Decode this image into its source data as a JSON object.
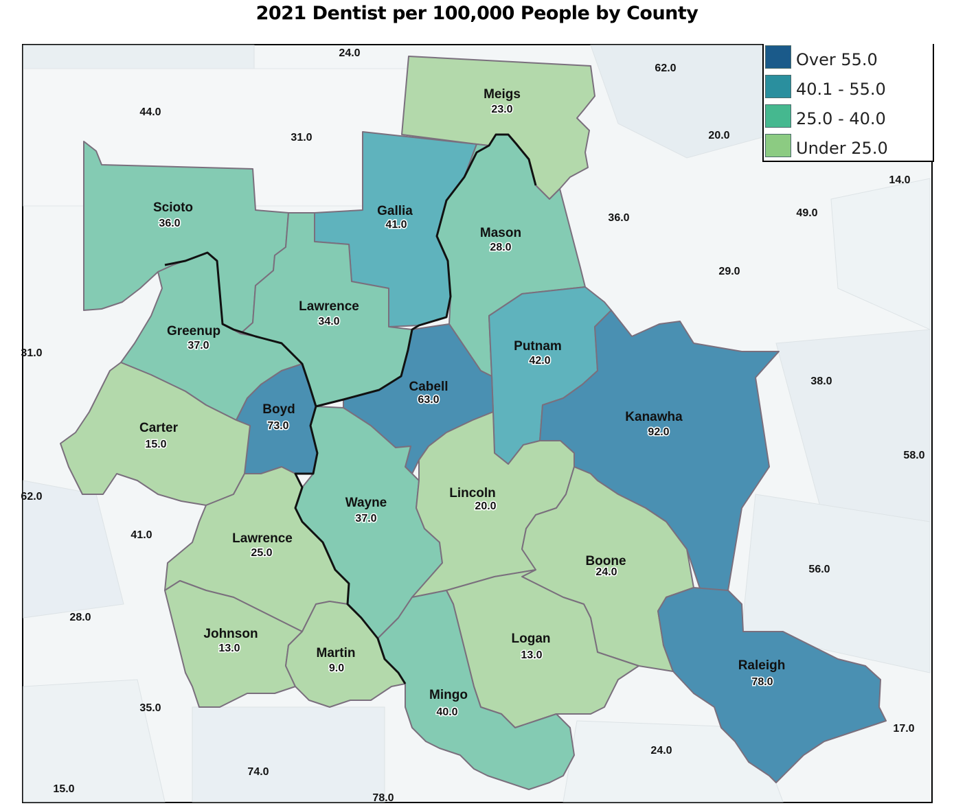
{
  "title": "2021 Dentist per 100,000 People by County",
  "legend": [
    {
      "label": "Over 55.0",
      "color": "#1a5a8a"
    },
    {
      "label": "40.1 - 55.0",
      "color": "#2a8f9e"
    },
    {
      "label": "25.0 - 40.0",
      "color": "#45b88f"
    },
    {
      "label": "Under 25.0",
      "color": "#8ccb82"
    }
  ],
  "counties": [
    {
      "id": "meigs",
      "name": "Meigs",
      "value": "23.0"
    },
    {
      "id": "scioto",
      "name": "Scioto",
      "value": "36.0"
    },
    {
      "id": "gallia",
      "name": "Gallia",
      "value": "41.0"
    },
    {
      "id": "mason",
      "name": "Mason",
      "value": "28.0"
    },
    {
      "id": "lawrence-oh",
      "name": "Lawrence",
      "value": "34.0"
    },
    {
      "id": "greenup",
      "name": "Greenup",
      "value": "37.0"
    },
    {
      "id": "putnam",
      "name": "Putnam",
      "value": "42.0"
    },
    {
      "id": "cabell",
      "name": "Cabell",
      "value": "63.0"
    },
    {
      "id": "boyd",
      "name": "Boyd",
      "value": "73.0"
    },
    {
      "id": "carter",
      "name": "Carter",
      "value": "15.0"
    },
    {
      "id": "kanawha",
      "name": "Kanawha",
      "value": "92.0"
    },
    {
      "id": "wayne",
      "name": "Wayne",
      "value": "37.0"
    },
    {
      "id": "lincoln",
      "name": "Lincoln",
      "value": "20.0"
    },
    {
      "id": "lawrence-ky",
      "name": "Lawrence",
      "value": "25.0"
    },
    {
      "id": "boone",
      "name": "Boone",
      "value": "24.0"
    },
    {
      "id": "johnson",
      "name": "Johnson",
      "value": "13.0"
    },
    {
      "id": "logan",
      "name": "Logan",
      "value": "13.0"
    },
    {
      "id": "martin",
      "name": "Martin",
      "value": "9.0"
    },
    {
      "id": "raleigh",
      "name": "Raleigh",
      "value": "78.0"
    },
    {
      "id": "mingo",
      "name": "Mingo",
      "value": "40.0"
    }
  ],
  "outside_values": [
    "24.0",
    "62.0",
    "44.0",
    "31.0",
    "20.0",
    "14.0",
    "36.0",
    "49.0",
    "29.0",
    "31.0",
    "38.0",
    "58.0",
    "62.0",
    "41.0",
    "56.0",
    "28.0",
    "35.0",
    "17.0",
    "24.0",
    "74.0",
    "15.0",
    "78.0"
  ],
  "fill_colors": {
    "dark": "#4a90b2",
    "mid": "#5fb3bd",
    "light_green": "#84cbb3",
    "pale_green": "#b3d9ab"
  }
}
